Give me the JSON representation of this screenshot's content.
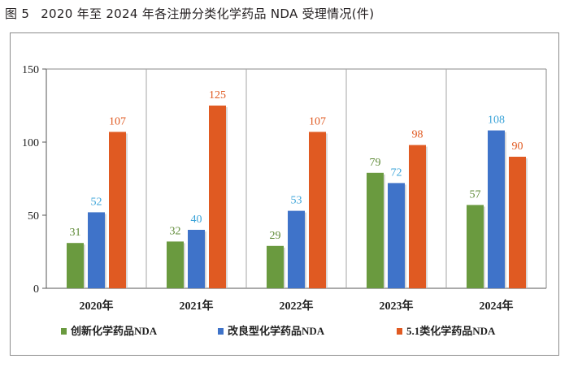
{
  "figure": {
    "number": "图 5",
    "caption": "2020 年至 2024 年各注册分类化学药品 NDA 受理情况(件)"
  },
  "chart_data": {
    "type": "bar",
    "categories": [
      "2020年",
      "2021年",
      "2022年",
      "2023年",
      "2024年"
    ],
    "series": [
      {
        "name": "创新化学药品NDA",
        "color": "#6a9a3f",
        "label_color": "#5e8a36",
        "values": [
          31,
          32,
          29,
          79,
          57
        ]
      },
      {
        "name": "改良型化学药品NDA",
        "color": "#3f73c9",
        "label_color": "#3aa3d8",
        "values": [
          52,
          40,
          53,
          72,
          108
        ]
      },
      {
        "name": "5.1类化学药品NDA",
        "color": "#e05a22",
        "label_color": "#e05a22",
        "values": [
          107,
          125,
          107,
          98,
          90
        ]
      }
    ],
    "yticks": [
      0,
      50,
      100,
      150
    ],
    "ylim": [
      0,
      150
    ],
    "grid": false,
    "legend_position": "bottom",
    "data_labels": true
  }
}
